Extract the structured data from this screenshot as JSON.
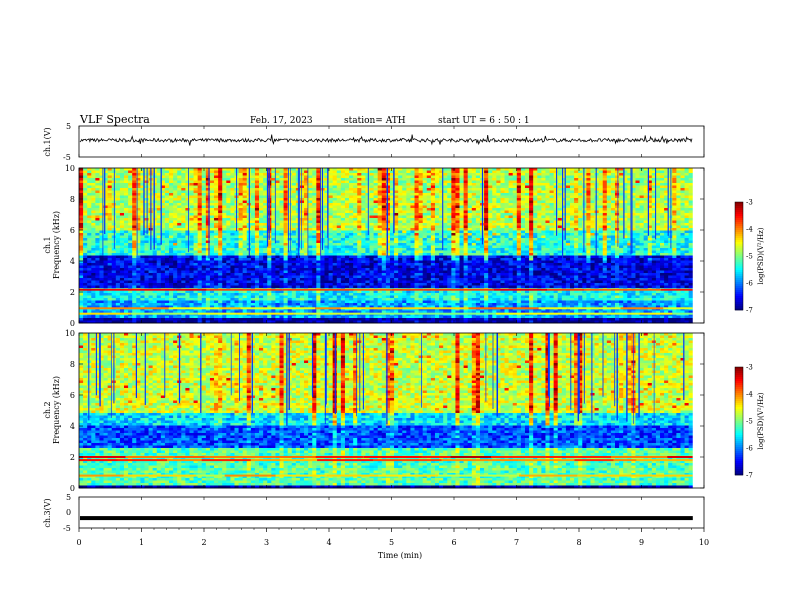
{
  "header": {
    "title": "VLF  Spectra",
    "date": "Feb. 17, 2023",
    "station": "station= ATH",
    "start": "start  UT  =   6  : 50 : 1"
  },
  "chart_data": [
    {
      "type": "line",
      "panel": "ch1-waveform",
      "ylabel": "ch.1(V)",
      "xlim": [
        0,
        10
      ],
      "ylim": [
        -5,
        5
      ],
      "yticks": [
        "5",
        "-5"
      ],
      "description_series": [
        {
          "name": "ch.1",
          "mean_level": 0.4,
          "amplitude": 0.8,
          "x_end": 9.82
        }
      ]
    },
    {
      "type": "heatmap",
      "panel": "ch1-spectrogram",
      "ylabel_top": "ch.1",
      "ylabel": "Frequency  (kHz)",
      "xlim": [
        0,
        9.82
      ],
      "ylim": [
        0,
        10
      ],
      "yticks": [
        "0",
        "2",
        "4",
        "6",
        "8",
        "10"
      ],
      "colorbar": {
        "label": "log(PSD)(V²/Hz)",
        "range": [
          -7,
          -3
        ],
        "ticks": [
          "-3",
          "-4",
          "-5",
          "-6",
          "-7"
        ]
      },
      "bands": [
        {
          "f": [
            6.0,
            10.0
          ],
          "level": -4.8
        },
        {
          "f": [
            4.3,
            6.0
          ],
          "level": -5.4
        },
        {
          "f": [
            2.3,
            4.3
          ],
          "level": -6.6
        },
        {
          "f": [
            1.5,
            2.3
          ],
          "level": -5.5
        },
        {
          "f": [
            0.3,
            1.5
          ],
          "level": -5.9
        },
        {
          "f": [
            0.0,
            0.3
          ],
          "level": -7.0
        }
      ],
      "lines": [
        {
          "f": 2.15,
          "level": -3.8
        },
        {
          "f": 0.95,
          "level": -4.3
        },
        {
          "f": 0.6,
          "level": -4.6
        }
      ]
    },
    {
      "type": "heatmap",
      "panel": "ch2-spectrogram",
      "ylabel_top": "ch.2",
      "ylabel": "Frequency  (kHz)",
      "xlim": [
        0,
        9.82
      ],
      "ylim": [
        0,
        10
      ],
      "yticks": [
        "0",
        "2",
        "4",
        "6",
        "8",
        "10"
      ],
      "colorbar": {
        "label": "log(PSD)(V²/Hz)",
        "range": [
          -7,
          -3
        ],
        "ticks": [
          "-3",
          "-4",
          "-5",
          "-6",
          "-7"
        ]
      },
      "bands": [
        {
          "f": [
            4.8,
            10.0
          ],
          "level": -4.7
        },
        {
          "f": [
            4.1,
            4.8
          ],
          "level": -5.6
        },
        {
          "f": [
            2.6,
            4.1
          ],
          "level": -6.2
        },
        {
          "f": [
            0.2,
            2.6
          ],
          "level": -5.2
        },
        {
          "f": [
            0.0,
            0.2
          ],
          "level": -6.9
        }
      ],
      "lines": [
        {
          "f": 2.0,
          "level": -3.6
        },
        {
          "f": 1.8,
          "level": -3.9
        },
        {
          "f": 0.8,
          "level": -4.4
        }
      ]
    },
    {
      "type": "line",
      "panel": "ch3-waveform",
      "ylabel": "ch.3(V)",
      "xlim": [
        0,
        10
      ],
      "ylim": [
        -5,
        5
      ],
      "yticks": [
        "5",
        "0",
        "-5"
      ],
      "xlabel": "Time  (min)",
      "xticks": [
        "0",
        "1",
        "2",
        "3",
        "4",
        "5",
        "6",
        "7",
        "8",
        "9",
        "10"
      ],
      "description_series": [
        {
          "name": "ch.3",
          "mean_level": -1.8,
          "x_end": 9.82
        }
      ]
    }
  ]
}
